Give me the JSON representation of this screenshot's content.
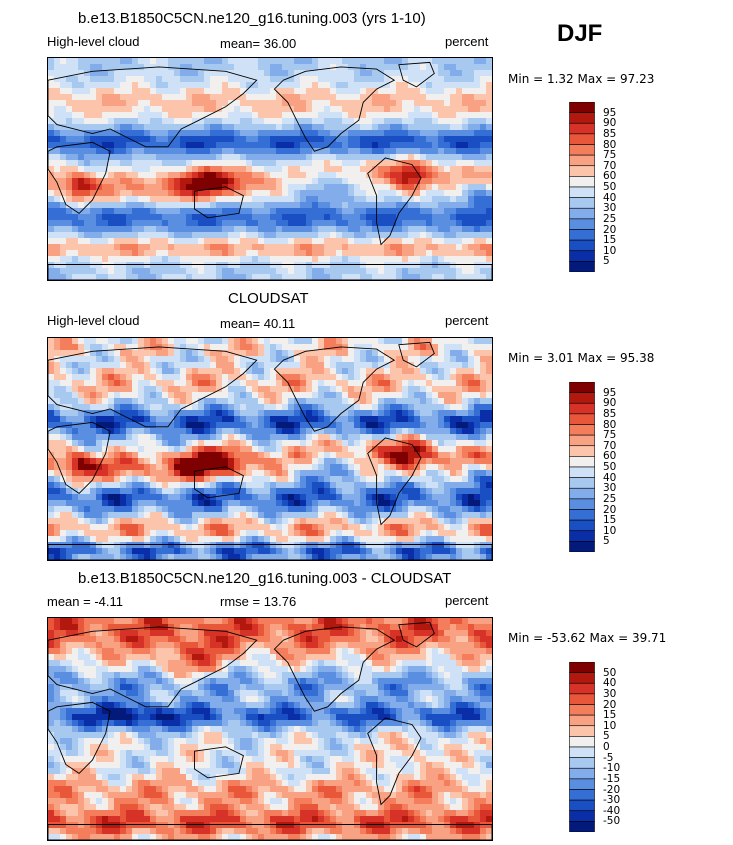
{
  "season": "DJF",
  "panels": [
    {
      "id": "model",
      "title": "b.e13.B1850C5CN.ne120_g16.tuning.003 (yrs 1-10)",
      "left_label": "High-level cloud",
      "center_label": "mean=  36.00",
      "right_label": "percent",
      "minmax": "Min =   1.32 Max =  97.23",
      "colorbar_labels": [
        "95",
        "90",
        "85",
        "80",
        "75",
        "70",
        "60",
        "50",
        "40",
        "30",
        "25",
        "20",
        "15",
        "10",
        "5"
      ],
      "variant": "model"
    },
    {
      "id": "obs",
      "title": "CLOUDSAT",
      "left_label": "High-level cloud",
      "center_label": "mean=  40.11",
      "right_label": "percent",
      "minmax": "Min =   3.01 Max =  95.38",
      "colorbar_labels": [
        "95",
        "90",
        "85",
        "80",
        "75",
        "70",
        "60",
        "50",
        "40",
        "30",
        "25",
        "20",
        "15",
        "10",
        "5"
      ],
      "variant": "obs"
    },
    {
      "id": "diff",
      "title": "b.e13.B1850C5CN.ne120_g16.tuning.003 - CLOUDSAT",
      "left_label": "mean =  -4.11",
      "center_label": "rmse =  13.76",
      "right_label": "percent",
      "minmax": "Min = -53.62 Max =  39.71",
      "colorbar_labels": [
        "50",
        "40",
        "30",
        "20",
        "15",
        "10",
        "5",
        "0",
        "-5",
        "-10",
        "-15",
        "-20",
        "-30",
        "-40",
        "-50"
      ],
      "variant": "diff"
    }
  ],
  "colors": {
    "scale": [
      "#7f0000",
      "#b2180e",
      "#d73227",
      "#e8573a",
      "#f47d5b",
      "#f9a183",
      "#fcc4aa",
      "#f2f0ee",
      "#cfe1f6",
      "#a7c8ef",
      "#82acea",
      "#5a8ee1",
      "#356fd6",
      "#1a4fc4",
      "#0a2ea8",
      "#031a7a"
    ],
    "land_line": "#000000"
  }
}
